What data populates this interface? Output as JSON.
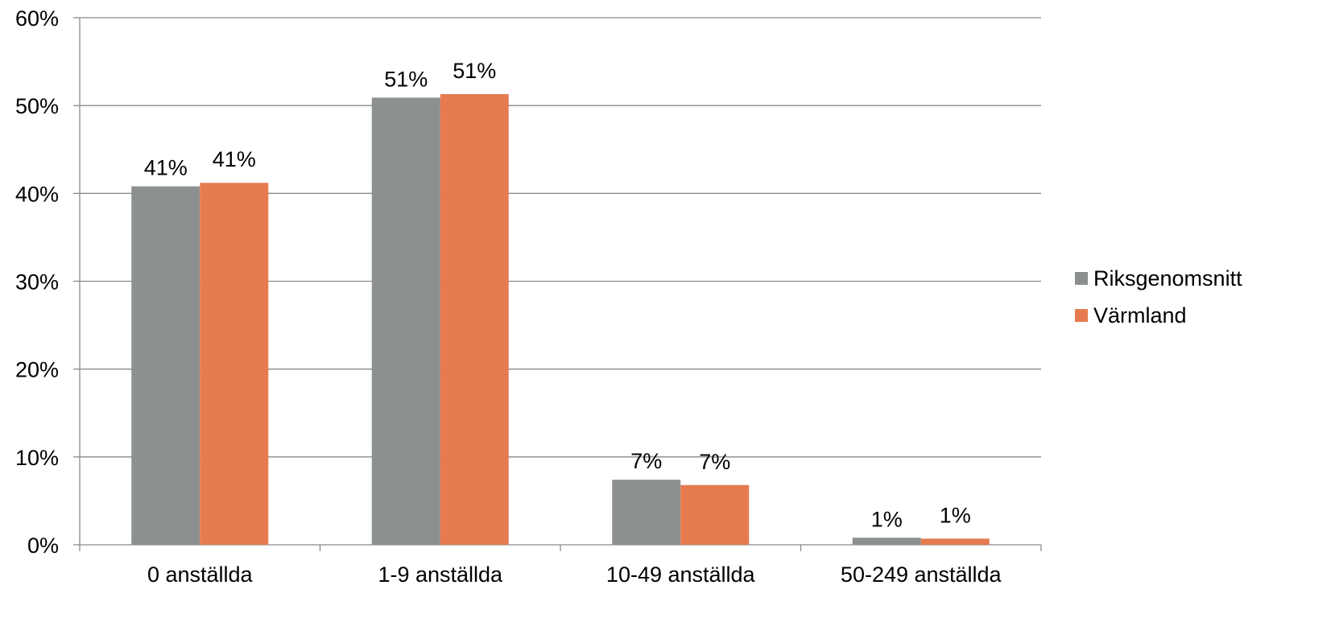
{
  "chart_data": {
    "type": "bar",
    "categories": [
      "0 anställda",
      "1-9 anställda",
      "10-49 anställda",
      "50-249 anställda"
    ],
    "series": [
      {
        "name": "Riksgenomsnitt",
        "color": "#8c918f",
        "values": [
          0.408,
          0.509,
          0.074,
          0.008
        ],
        "labels": [
          "41%",
          "51%",
          "7%",
          "1%"
        ]
      },
      {
        "name": "Värmland",
        "color": "#e67b4f",
        "values": [
          0.412,
          0.513,
          0.068,
          0.007
        ],
        "labels": [
          "41%",
          "51%",
          "7%",
          "1%"
        ]
      }
    ],
    "ylim": [
      0,
      0.6
    ],
    "yticks": [
      0,
      0.1,
      0.2,
      0.3,
      0.4,
      0.5,
      0.6
    ],
    "ytick_labels": [
      "0%",
      "10%",
      "20%",
      "30%",
      "40%",
      "50%",
      "60%"
    ],
    "grid": true,
    "legend_position": "right"
  }
}
